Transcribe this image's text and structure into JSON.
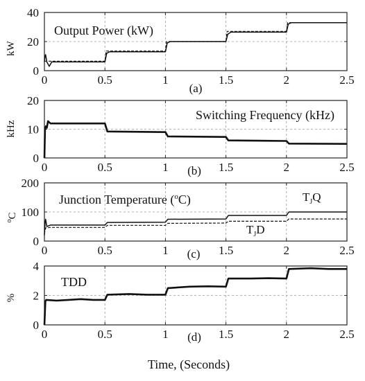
{
  "x_axis_label": "Time, (Seconds)",
  "chart_data": [
    {
      "type": "line",
      "panel_label": "(a)",
      "annotation": "Output Power (kW)",
      "ylabel": "kW",
      "xlim": [
        0,
        2.5
      ],
      "ylim": [
        0,
        40
      ],
      "xticks": [
        0,
        0.5,
        1,
        1.5,
        2,
        2.5
      ],
      "yticks": [
        0,
        20,
        40
      ],
      "grid": true,
      "series": [
        {
          "style": "solid",
          "points": [
            [
              0,
              6
            ],
            [
              0.005,
              10
            ],
            [
              0.01,
              11
            ],
            [
              0.02,
              6
            ],
            [
              0.04,
              3
            ],
            [
              0.06,
              6
            ],
            [
              0.5,
              6
            ],
            [
              0.515,
              12
            ],
            [
              0.54,
              13
            ],
            [
              1,
              13
            ],
            [
              1.015,
              19
            ],
            [
              1.04,
              20
            ],
            [
              1.5,
              20
            ],
            [
              1.515,
              25
            ],
            [
              1.54,
              26.5
            ],
            [
              2,
              26.5
            ],
            [
              2.015,
              32
            ],
            [
              2.04,
              33
            ],
            [
              2.5,
              33
            ]
          ]
        },
        {
          "style": "dashed",
          "points": [
            [
              0,
              6.5
            ],
            [
              0.5,
              6.5
            ],
            [
              0.505,
              10
            ],
            [
              0.51,
              13.5
            ],
            [
              1,
              13.5
            ],
            [
              1.005,
              17
            ],
            [
              1.01,
              20
            ],
            [
              1.5,
              20
            ],
            [
              1.505,
              24
            ],
            [
              1.51,
              27
            ],
            [
              2,
              27
            ],
            [
              2.005,
              30
            ],
            [
              2.01,
              33
            ],
            [
              2.5,
              33
            ]
          ]
        }
      ]
    },
    {
      "type": "line",
      "panel_label": "(b)",
      "annotation": "Switching Frequency (kHz)",
      "ylabel": "kHz",
      "xlim": [
        0,
        2.5
      ],
      "ylim": [
        0,
        20
      ],
      "xticks": [
        0,
        0.5,
        1,
        1.5,
        2,
        2.5
      ],
      "yticks": [
        0,
        10,
        20
      ],
      "grid": true,
      "series": [
        {
          "style": "thick",
          "points": [
            [
              0,
              0
            ],
            [
              0.005,
              10
            ],
            [
              0.012,
              11
            ],
            [
              0.02,
              10.5
            ],
            [
              0.03,
              12.8
            ],
            [
              0.05,
              12
            ],
            [
              0.5,
              12
            ],
            [
              0.52,
              9.2
            ],
            [
              1,
              9
            ],
            [
              1.02,
              7.5
            ],
            [
              1.5,
              7.3
            ],
            [
              1.52,
              6.1
            ],
            [
              2,
              5.9
            ],
            [
              2.02,
              5
            ],
            [
              2.5,
              4.9
            ]
          ]
        }
      ]
    },
    {
      "type": "line",
      "panel_label": "(c)",
      "annotation": "Junction Temperature (",
      "annotation_sup": "o",
      "annotation_end": "C)",
      "ylabel": "C",
      "ylabel_sup": "o",
      "xlim": [
        0,
        2.5
      ],
      "ylim": [
        0,
        200
      ],
      "xticks": [
        0,
        0.5,
        1,
        1.5,
        2,
        2.5
      ],
      "yticks": [
        0,
        100,
        200
      ],
      "grid": true,
      "series_labels": [
        {
          "main": "T",
          "sub": "J",
          "end": "Q"
        },
        {
          "main": "T",
          "sub": "J",
          "end": "D"
        }
      ],
      "series": [
        {
          "style": "solid",
          "points": [
            [
              0,
              20
            ],
            [
              0.005,
              60
            ],
            [
              0.01,
              75
            ],
            [
              0.02,
              50
            ],
            [
              0.05,
              55
            ],
            [
              0.5,
              55
            ],
            [
              0.52,
              64
            ],
            [
              1,
              65
            ],
            [
              1.02,
              75
            ],
            [
              1.5,
              76
            ],
            [
              1.52,
              88
            ],
            [
              2,
              88
            ],
            [
              2.02,
              100
            ],
            [
              2.5,
              100
            ]
          ]
        },
        {
          "style": "dashed",
          "points": [
            [
              0,
              25
            ],
            [
              0.01,
              45
            ],
            [
              0.05,
              47
            ],
            [
              0.5,
              47
            ],
            [
              0.52,
              54
            ],
            [
              1,
              54
            ],
            [
              1.02,
              61
            ],
            [
              1.5,
              62
            ],
            [
              1.52,
              68
            ],
            [
              2,
              68
            ],
            [
              2.02,
              76
            ],
            [
              2.5,
              76
            ]
          ]
        }
      ]
    },
    {
      "type": "line",
      "panel_label": "(d)",
      "annotation": "TDD",
      "ylabel": "%",
      "xlim": [
        0,
        2.5
      ],
      "ylim": [
        0,
        4
      ],
      "xticks": [
        0,
        0.5,
        1,
        1.5,
        2,
        2.5
      ],
      "yticks": [
        0,
        2,
        4
      ],
      "grid": true,
      "series": [
        {
          "style": "thick",
          "points": [
            [
              0,
              0
            ],
            [
              0.008,
              1.6
            ],
            [
              0.015,
              1.7
            ],
            [
              0.1,
              1.65
            ],
            [
              0.2,
              1.7
            ],
            [
              0.3,
              1.75
            ],
            [
              0.4,
              1.7
            ],
            [
              0.5,
              1.7
            ],
            [
              0.52,
              2.05
            ],
            [
              0.7,
              2.1
            ],
            [
              0.85,
              2.05
            ],
            [
              1,
              2.05
            ],
            [
              1.02,
              2.5
            ],
            [
              1.2,
              2.6
            ],
            [
              1.35,
              2.62
            ],
            [
              1.5,
              2.6
            ],
            [
              1.52,
              3.15
            ],
            [
              1.7,
              3.15
            ],
            [
              1.85,
              3.17
            ],
            [
              2,
              3.15
            ],
            [
              2.02,
              3.8
            ],
            [
              2.2,
              3.85
            ],
            [
              2.35,
              3.8
            ],
            [
              2.5,
              3.8
            ]
          ]
        }
      ]
    }
  ]
}
